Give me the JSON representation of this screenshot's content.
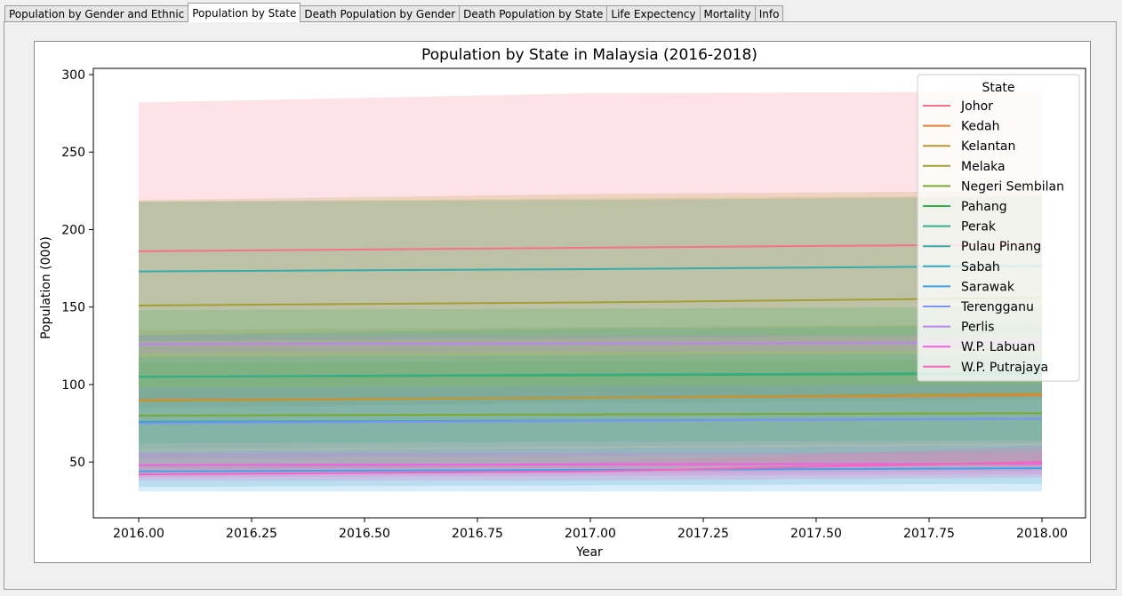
{
  "tabs": [
    {
      "label": "Population by Gender and Ethnic",
      "active": false
    },
    {
      "label": "Population by State",
      "active": true
    },
    {
      "label": "Death Population by Gender",
      "active": false
    },
    {
      "label": "Death Population by State",
      "active": false
    },
    {
      "label": "Life Expectency",
      "active": false
    },
    {
      "label": "Mortality",
      "active": false
    },
    {
      "label": "Info",
      "active": false
    }
  ],
  "chart_data": {
    "type": "line",
    "title": "Population by State in Malaysia (2016-2018)",
    "xlabel": "Year",
    "ylabel": "Population (000)",
    "xlim": [
      1965.75,
      2018.1
    ],
    "ylim": [
      14,
      304
    ],
    "x": [
      2016,
      2017,
      2018
    ],
    "xticks": [
      "2016.00",
      "2016.25",
      "2016.50",
      "2016.75",
      "2017.00",
      "2017.25",
      "2017.50",
      "2017.75",
      "2018.00"
    ],
    "yticks": [
      "50",
      "100",
      "150",
      "200",
      "250",
      "300"
    ],
    "legend": {
      "title": "State",
      "position": "upper right"
    },
    "series": [
      {
        "name": "Johor",
        "color": "#f77189",
        "values": [
          186,
          188.3,
          190.5
        ],
        "band_low": [
          90,
          92,
          94
        ],
        "band_high": [
          282,
          288,
          289
        ]
      },
      {
        "name": "Kedah",
        "color": "#e68332",
        "values": [
          90,
          91.5,
          93
        ],
        "band_low": [
          45,
          46,
          47
        ],
        "band_high": [
          135,
          137,
          139
        ]
      },
      {
        "name": "Kelantan",
        "color": "#bb9832",
        "values": [
          89.5,
          91.5,
          94
        ],
        "band_low": [
          42,
          43,
          44
        ],
        "band_high": [
          219,
          223,
          225
        ]
      },
      {
        "name": "Melaka",
        "color": "#a19f32",
        "values": [
          151,
          153,
          156
        ],
        "band_low": [
          85,
          88,
          90
        ],
        "band_high": [
          218,
          220,
          222
        ]
      },
      {
        "name": "Negeri Sembilan",
        "color": "#7aa932",
        "values": [
          80,
          80.7,
          81.5
        ],
        "band_low": [
          46,
          47,
          48
        ],
        "band_high": [
          114,
          115,
          116
        ]
      },
      {
        "name": "Pahang",
        "color": "#32b048",
        "values": [
          105,
          106,
          107
        ],
        "band_low": [
          62,
          63,
          64
        ],
        "band_high": [
          148,
          149,
          150
        ]
      },
      {
        "name": "Perak",
        "color": "#34ae8d",
        "values": [
          105,
          106.5,
          107.5
        ],
        "band_low": [
          58,
          60,
          62
        ],
        "band_high": [
          132,
          136,
          138
        ]
      },
      {
        "name": "Pulau Pinang",
        "color": "#37abaa",
        "values": [
          173,
          174.5,
          176.5
        ],
        "band_low": [
          128,
          130,
          132
        ],
        "band_high": [
          218,
          219,
          221
        ]
      },
      {
        "name": "Sabah",
        "color": "#39a7bd",
        "values": [
          76,
          76.8,
          78
        ],
        "band_low": [
          34,
          35,
          36
        ],
        "band_high": [
          118,
          119,
          120
        ]
      },
      {
        "name": "Sarawak",
        "color": "#3ba3ec",
        "values": [
          44,
          45,
          46
        ],
        "band_low": [
          31,
          31,
          31
        ],
        "band_high": [
          57,
          59,
          61
        ]
      },
      {
        "name": "Terengganu",
        "color": "#7e94f5",
        "values": [
          75,
          76.5,
          78
        ],
        "band_low": [
          52,
          54,
          56
        ],
        "band_high": [
          98,
          99,
          100
        ]
      },
      {
        "name": "Perlis",
        "color": "#bb83f4",
        "values": [
          126,
          126.5,
          127
        ],
        "band_low": [
          120,
          121,
          122
        ],
        "band_high": [
          132,
          132,
          132
        ]
      },
      {
        "name": "W.P. Labuan",
        "color": "#f45ee5",
        "values": [
          48,
          48.5,
          49
        ],
        "band_low": [
          40,
          41,
          42
        ],
        "band_high": [
          56,
          56,
          56
        ]
      },
      {
        "name": "W.P. Putrajaya",
        "color": "#f565bb",
        "values": [
          42,
          44,
          50
        ],
        "band_low": [
          38,
          38,
          40
        ],
        "band_high": [
          46,
          50,
          60
        ]
      }
    ]
  }
}
